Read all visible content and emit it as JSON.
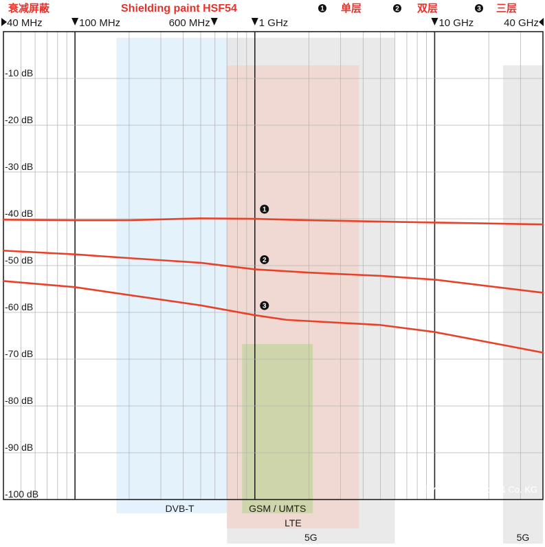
{
  "header": {
    "title_cn": "衰减屏蔽",
    "title": "Shielding paint HSF54",
    "legend": [
      {
        "marker": "1",
        "label": "单层"
      },
      {
        "marker": "2",
        "label": "双层"
      },
      {
        "marker": "3",
        "label": "三层"
      }
    ]
  },
  "copyright": "© YSHIELD GmbH & Co. KG",
  "chart_data": {
    "type": "line",
    "title": "Shielding paint HSF54",
    "xscale": "log",
    "xlim_hz": [
      40000000,
      40000000000
    ],
    "ylim_db": [
      -100,
      0
    ],
    "ylabel_unit": "dB",
    "grid": true,
    "frequency_labels": [
      {
        "label": "40 MHz",
        "hz": 40000000
      },
      {
        "label": "100 MHz",
        "hz": 100000000
      },
      {
        "label": "600 MHz",
        "hz": 600000000
      },
      {
        "label": "1 GHz",
        "hz": 1000000000
      },
      {
        "label": "10 GHz",
        "hz": 10000000000
      },
      {
        "label": "40 GHz",
        "hz": 40000000000
      }
    ],
    "y_ticks": [
      {
        "value": -10,
        "label": "-10 dB"
      },
      {
        "value": -20,
        "label": "-20 dB"
      },
      {
        "value": -30,
        "label": "-30 dB"
      },
      {
        "value": -40,
        "label": "-40 dB"
      },
      {
        "value": -50,
        "label": "-50 dB"
      },
      {
        "value": -60,
        "label": "-60 dB"
      },
      {
        "value": -70,
        "label": "-70 dB"
      },
      {
        "value": -80,
        "label": "-80 dB"
      },
      {
        "value": -90,
        "label": "-90 dB"
      },
      {
        "value": -100,
        "label": "-100 dB"
      }
    ],
    "series": [
      {
        "marker": "1",
        "name": "单层",
        "color": "#e8412a",
        "x_hz": [
          40000000,
          100000000,
          200000000,
          500000000,
          1000000000,
          2000000000,
          5000000000,
          10000000000,
          40000000000
        ],
        "y_db": [
          -40.2,
          -40.3,
          -40.3,
          -39.9,
          -40.0,
          -40.3,
          -40.6,
          -40.8,
          -41.2
        ]
      },
      {
        "marker": "2",
        "name": "双层",
        "color": "#e8412a",
        "x_hz": [
          40000000,
          100000000,
          200000000,
          500000000,
          1000000000,
          2000000000,
          5000000000,
          10000000000,
          40000000000
        ],
        "y_db": [
          -46.8,
          -47.6,
          -48.4,
          -49.4,
          -50.8,
          -51.5,
          -52.2,
          -53.0,
          -55.8
        ]
      },
      {
        "marker": "3",
        "name": "三层",
        "color": "#e8412a",
        "x_hz": [
          40000000,
          100000000,
          200000000,
          500000000,
          1000000000,
          1500000000,
          5000000000,
          10000000000,
          40000000000
        ],
        "y_db": [
          -53.3,
          -54.6,
          -56.3,
          -58.5,
          -60.6,
          -61.6,
          -62.7,
          -64.2,
          -68.6
        ]
      }
    ],
    "bands": [
      {
        "label": "DVB-T",
        "hz_range": [
          170000000,
          860000000
        ],
        "color": "#dff0fb"
      },
      {
        "label": "5G",
        "hz_range": [
          700000000,
          6000000000
        ],
        "color": "#e6e6e6"
      },
      {
        "label": "LTE",
        "hz_range": [
          700000000,
          3800000000
        ],
        "color": "#f1d6ce"
      },
      {
        "label": "GSM / UMTS",
        "hz_range": [
          850000000,
          2100000000
        ],
        "color": "#c9d3a5"
      },
      {
        "label": "5G",
        "hz_range": [
          24000000000,
          40000000000
        ],
        "color": "#e6e6e6"
      }
    ]
  }
}
